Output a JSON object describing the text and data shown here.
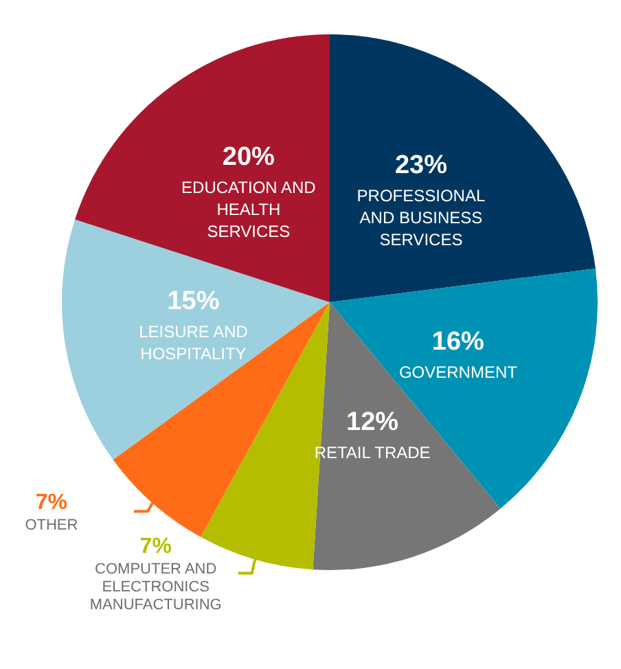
{
  "chart_data": {
    "type": "pie",
    "categories": [
      "PROFESSIONAL AND BUSINESS SERVICES",
      "GOVERNMENT",
      "RETAIL TRADE",
      "COMPUTER AND ELECTRONICS MANUFACTURING",
      "OTHER",
      "LEISURE AND HOSPITALITY",
      "EDUCATION AND HEALTH SERVICES"
    ],
    "values": [
      23,
      16,
      12,
      7,
      7,
      15,
      20
    ],
    "value_labels": [
      "23%",
      "16%",
      "12%",
      "7%",
      "7%",
      "15%",
      "20%"
    ],
    "colors": [
      "#003660",
      "#0092b5",
      "#767676",
      "#b5bd00",
      "#ff6c17",
      "#9dd0de",
      "#a8172e"
    ],
    "legend": false
  }
}
